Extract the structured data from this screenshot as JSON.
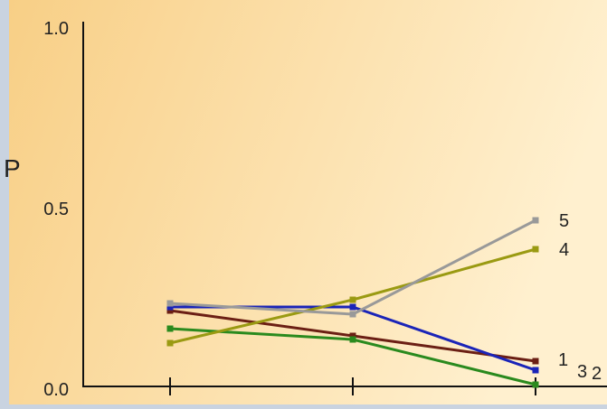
{
  "chart_data": {
    "type": "line",
    "title": "",
    "ylabel": "P",
    "xlabel": "",
    "ylim": [
      0.0,
      1.0
    ],
    "yticks": [
      "0.0",
      "0.5",
      "1.0"
    ],
    "x_count": 3,
    "x_tick_labels": [
      "",
      "",
      ""
    ],
    "grid": false,
    "legend": "inline labels at right end of each line",
    "series": [
      {
        "name": "1",
        "color": "#6b1f14",
        "values": [
          0.21,
          0.14,
          0.07
        ]
      },
      {
        "name": "2",
        "color": "#2a8a1e",
        "values": [
          0.16,
          0.13,
          0.005
        ]
      },
      {
        "name": "3",
        "color": "#1a24b8",
        "values": [
          0.22,
          0.22,
          0.045
        ]
      },
      {
        "name": "4",
        "color": "#9a9a12",
        "values": [
          0.12,
          0.24,
          0.38
        ]
      },
      {
        "name": "5",
        "color": "#999999",
        "values": [
          0.23,
          0.2,
          0.46
        ]
      }
    ]
  },
  "colors": {
    "background_left": "#f8cf86",
    "background_right": "#fff0cf",
    "frame": "#c9d3e0",
    "axis": "#111111"
  }
}
